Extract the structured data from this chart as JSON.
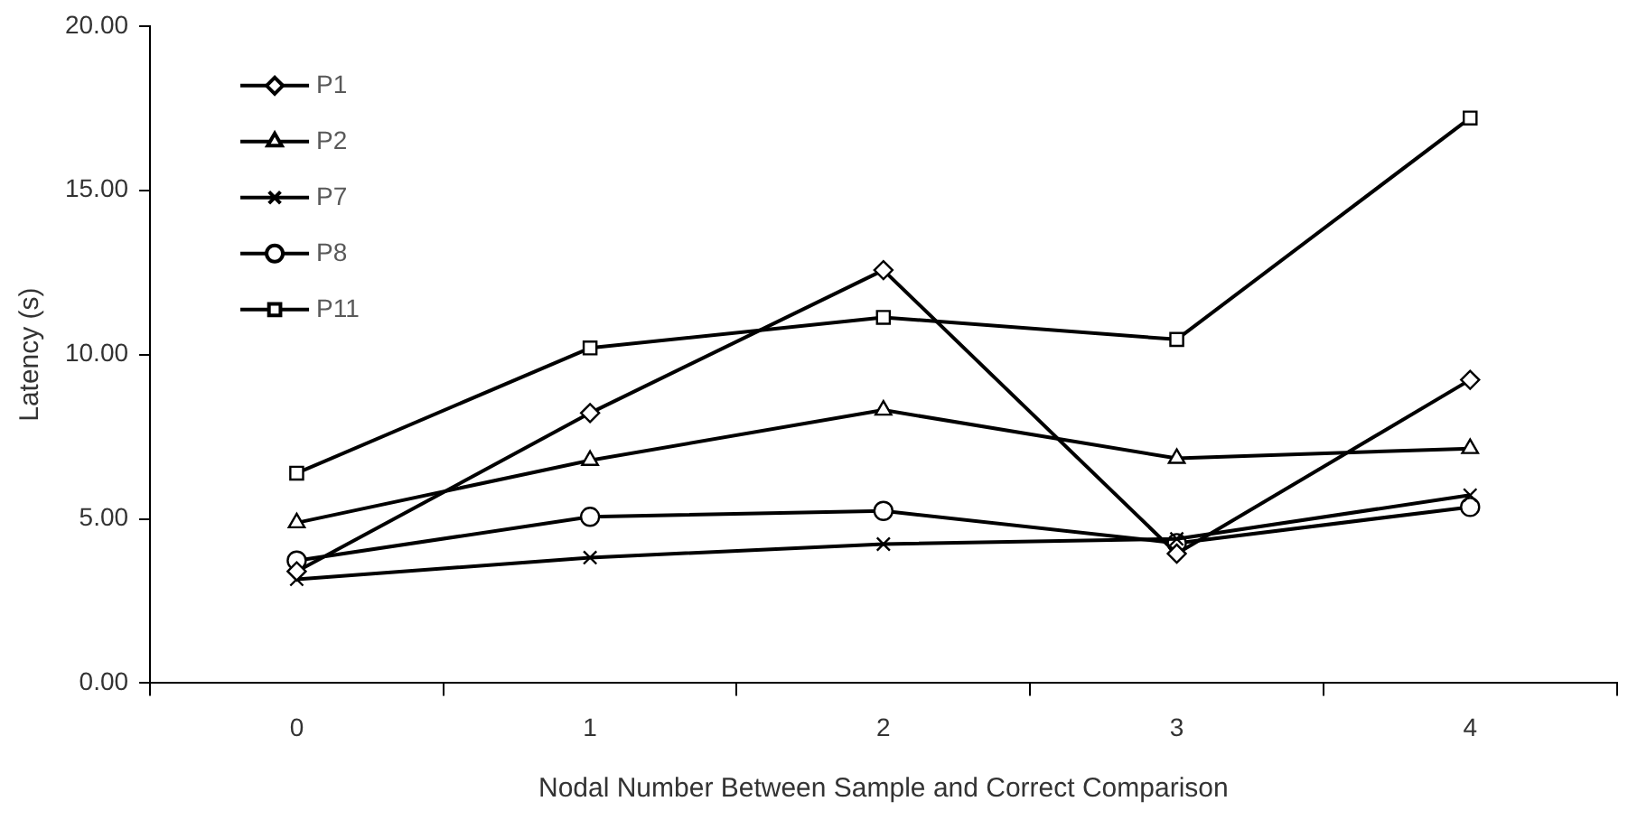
{
  "chart_data": {
    "type": "line",
    "xlabel": "Nodal Number Between Sample and Correct Comparison",
    "ylabel": "Latency (s)",
    "categories": [
      "0",
      "1",
      "2",
      "3",
      "4"
    ],
    "series": [
      {
        "name": "P1",
        "color": "#000000",
        "marker": "diamond",
        "values": [
          3.4,
          8.22,
          12.57,
          3.94,
          9.23
        ]
      },
      {
        "name": "P2",
        "color": "#000000",
        "marker": "triangle",
        "values": [
          4.88,
          6.78,
          8.31,
          6.84,
          7.14
        ]
      },
      {
        "name": "P7",
        "color": "#000000",
        "marker": "cross",
        "values": [
          3.16,
          3.82,
          4.23,
          4.39,
          5.72
        ]
      },
      {
        "name": "P8",
        "color": "#000000",
        "marker": "circle",
        "values": [
          3.73,
          5.06,
          5.24,
          4.26,
          5.36
        ]
      },
      {
        "name": "P11",
        "color": "#000000",
        "marker": "square",
        "values": [
          6.39,
          10.2,
          11.13,
          10.46,
          17.2
        ]
      }
    ],
    "ylim": [
      0,
      20
    ],
    "yticks": [
      {
        "value": 0,
        "label": "0.00"
      },
      {
        "value": 5,
        "label": "5.00"
      },
      {
        "value": 10,
        "label": "10.00"
      },
      {
        "value": 15,
        "label": "15.00"
      },
      {
        "value": 20,
        "label": "20.00"
      }
    ],
    "grid": false,
    "legend": "top left",
    "line_style": "solid"
  }
}
